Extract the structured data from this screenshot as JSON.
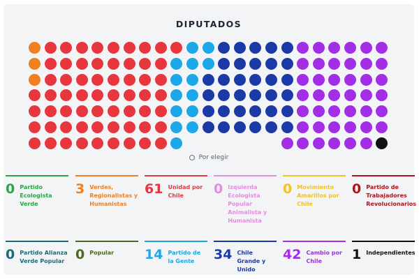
{
  "title": "DIPUTADOS",
  "pending_label": "Por elegir",
  "parties": [
    {
      "count": "0",
      "name": "Partido Ecologista Verde",
      "color": "#27a844"
    },
    {
      "count": "3",
      "name": "Verdes, Regionalistas y Humanistas",
      "color": "#f07f21"
    },
    {
      "count": "61",
      "name": "Unidad por Chile",
      "color": "#e8363f"
    },
    {
      "count": "0",
      "name": "Izquierda Ecologista Popular Animalista y Humanista",
      "color": "#e58be0"
    },
    {
      "count": "0",
      "name": "Movimiento Amarillos por Chile",
      "color": "#f3c21e"
    },
    {
      "count": "0",
      "name": "Partido de Trabajadores Revolucionarios",
      "color": "#b5121b"
    },
    {
      "count": "0",
      "name": "Partido Alianza Verde Popular",
      "color": "#1d6a7a"
    },
    {
      "count": "0",
      "name": "Popular",
      "color": "#4a6b1e"
    },
    {
      "count": "14",
      "name": "Partido de la Gente",
      "color": "#1ea7e6"
    },
    {
      "count": "34",
      "name": "Chile Grande y Unido",
      "color": "#1c3aa6"
    },
    {
      "count": "42",
      "name": "Cambio por Chile",
      "color": "#a22ee6"
    },
    {
      "count": "1",
      "name": "Independientes",
      "color": "#111111"
    }
  ],
  "seats_pending": 0
}
